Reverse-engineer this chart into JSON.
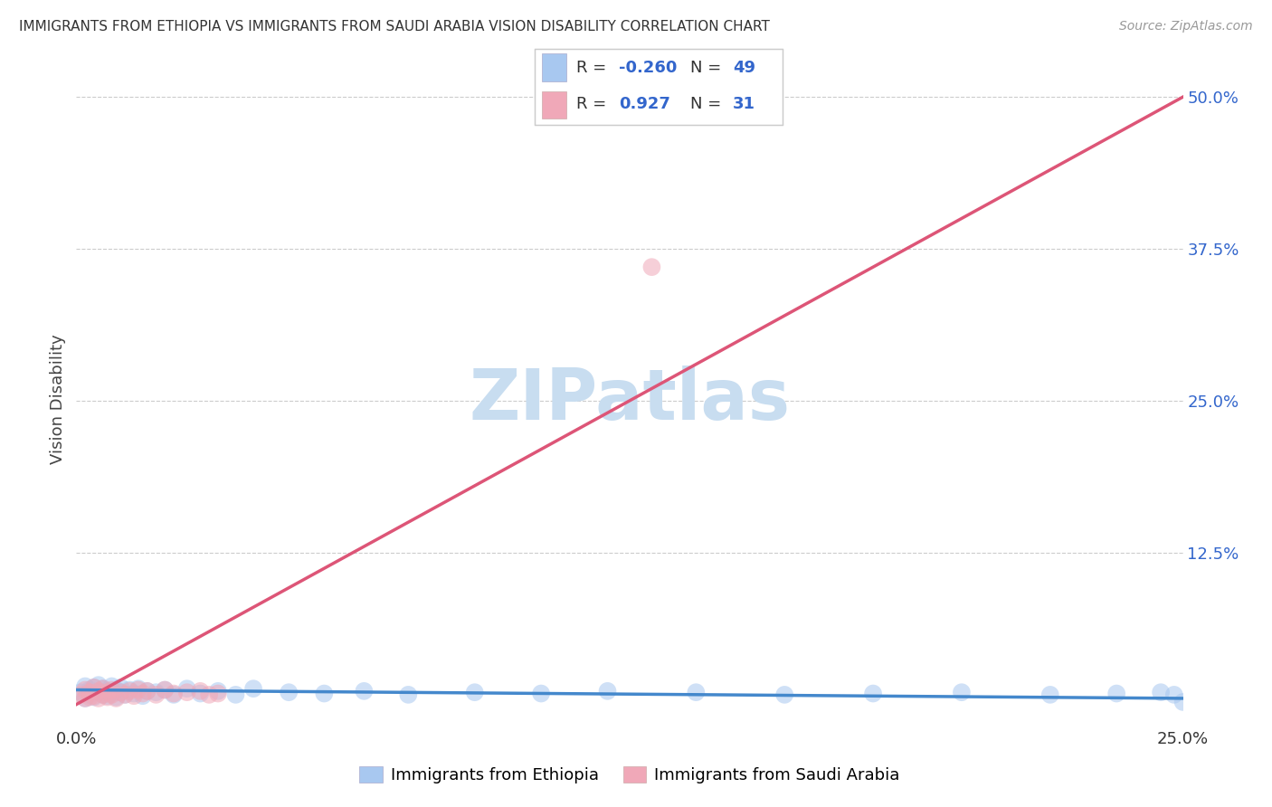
{
  "title": "IMMIGRANTS FROM ETHIOPIA VS IMMIGRANTS FROM SAUDI ARABIA VISION DISABILITY CORRELATION CHART",
  "source": "Source: ZipAtlas.com",
  "xlim": [
    0.0,
    0.25
  ],
  "ylim": [
    -0.018,
    0.52
  ],
  "ethiopia_R": -0.26,
  "ethiopia_N": 49,
  "saudi_R": 0.927,
  "saudi_N": 31,
  "ethiopia_color": "#a8c8f0",
  "saudi_color": "#f0a8b8",
  "ethiopia_line_color": "#4488cc",
  "saudi_line_color": "#dd5577",
  "background_color": "#ffffff",
  "watermark_text": "ZIPatlas",
  "watermark_color": "#c8ddf0",
  "legend_text_color": "#3366cc",
  "ethiopia_scatter_x": [
    0.001,
    0.002,
    0.002,
    0.003,
    0.003,
    0.004,
    0.004,
    0.005,
    0.005,
    0.006,
    0.006,
    0.007,
    0.007,
    0.008,
    0.008,
    0.009,
    0.009,
    0.01,
    0.01,
    0.011,
    0.012,
    0.013,
    0.014,
    0.015,
    0.016,
    0.018,
    0.02,
    0.022,
    0.025,
    0.028,
    0.032,
    0.036,
    0.04,
    0.048,
    0.056,
    0.065,
    0.075,
    0.09,
    0.105,
    0.12,
    0.14,
    0.16,
    0.18,
    0.2,
    0.22,
    0.235,
    0.245,
    0.248,
    0.25
  ],
  "ethiopia_scatter_y": [
    0.01,
    0.005,
    0.015,
    0.008,
    0.012,
    0.006,
    0.014,
    0.01,
    0.016,
    0.008,
    0.013,
    0.007,
    0.011,
    0.009,
    0.015,
    0.006,
    0.012,
    0.01,
    0.014,
    0.008,
    0.012,
    0.009,
    0.013,
    0.007,
    0.011,
    0.01,
    0.012,
    0.008,
    0.013,
    0.009,
    0.011,
    0.008,
    0.013,
    0.01,
    0.009,
    0.011,
    0.008,
    0.01,
    0.009,
    0.011,
    0.01,
    0.008,
    0.009,
    0.01,
    0.008,
    0.009,
    0.01,
    0.008,
    0.002
  ],
  "saudi_scatter_x": [
    0.001,
    0.002,
    0.002,
    0.003,
    0.003,
    0.004,
    0.004,
    0.005,
    0.005,
    0.006,
    0.006,
    0.007,
    0.007,
    0.008,
    0.008,
    0.009,
    0.01,
    0.011,
    0.012,
    0.013,
    0.014,
    0.015,
    0.016,
    0.018,
    0.02,
    0.022,
    0.025,
    0.028,
    0.03,
    0.032,
    0.13
  ],
  "saudi_scatter_y": [
    0.008,
    0.005,
    0.012,
    0.006,
    0.01,
    0.007,
    0.014,
    0.005,
    0.011,
    0.008,
    0.013,
    0.006,
    0.01,
    0.008,
    0.012,
    0.005,
    0.01,
    0.008,
    0.011,
    0.007,
    0.012,
    0.009,
    0.011,
    0.008,
    0.012,
    0.009,
    0.01,
    0.011,
    0.008,
    0.009,
    0.36
  ],
  "saudi_trend_x": [
    0.0,
    0.25
  ],
  "saudi_trend_y": [
    0.0,
    0.5
  ],
  "ethiopia_trend_x": [
    0.0,
    0.25
  ],
  "ethiopia_trend_y": [
    0.012,
    0.005
  ]
}
